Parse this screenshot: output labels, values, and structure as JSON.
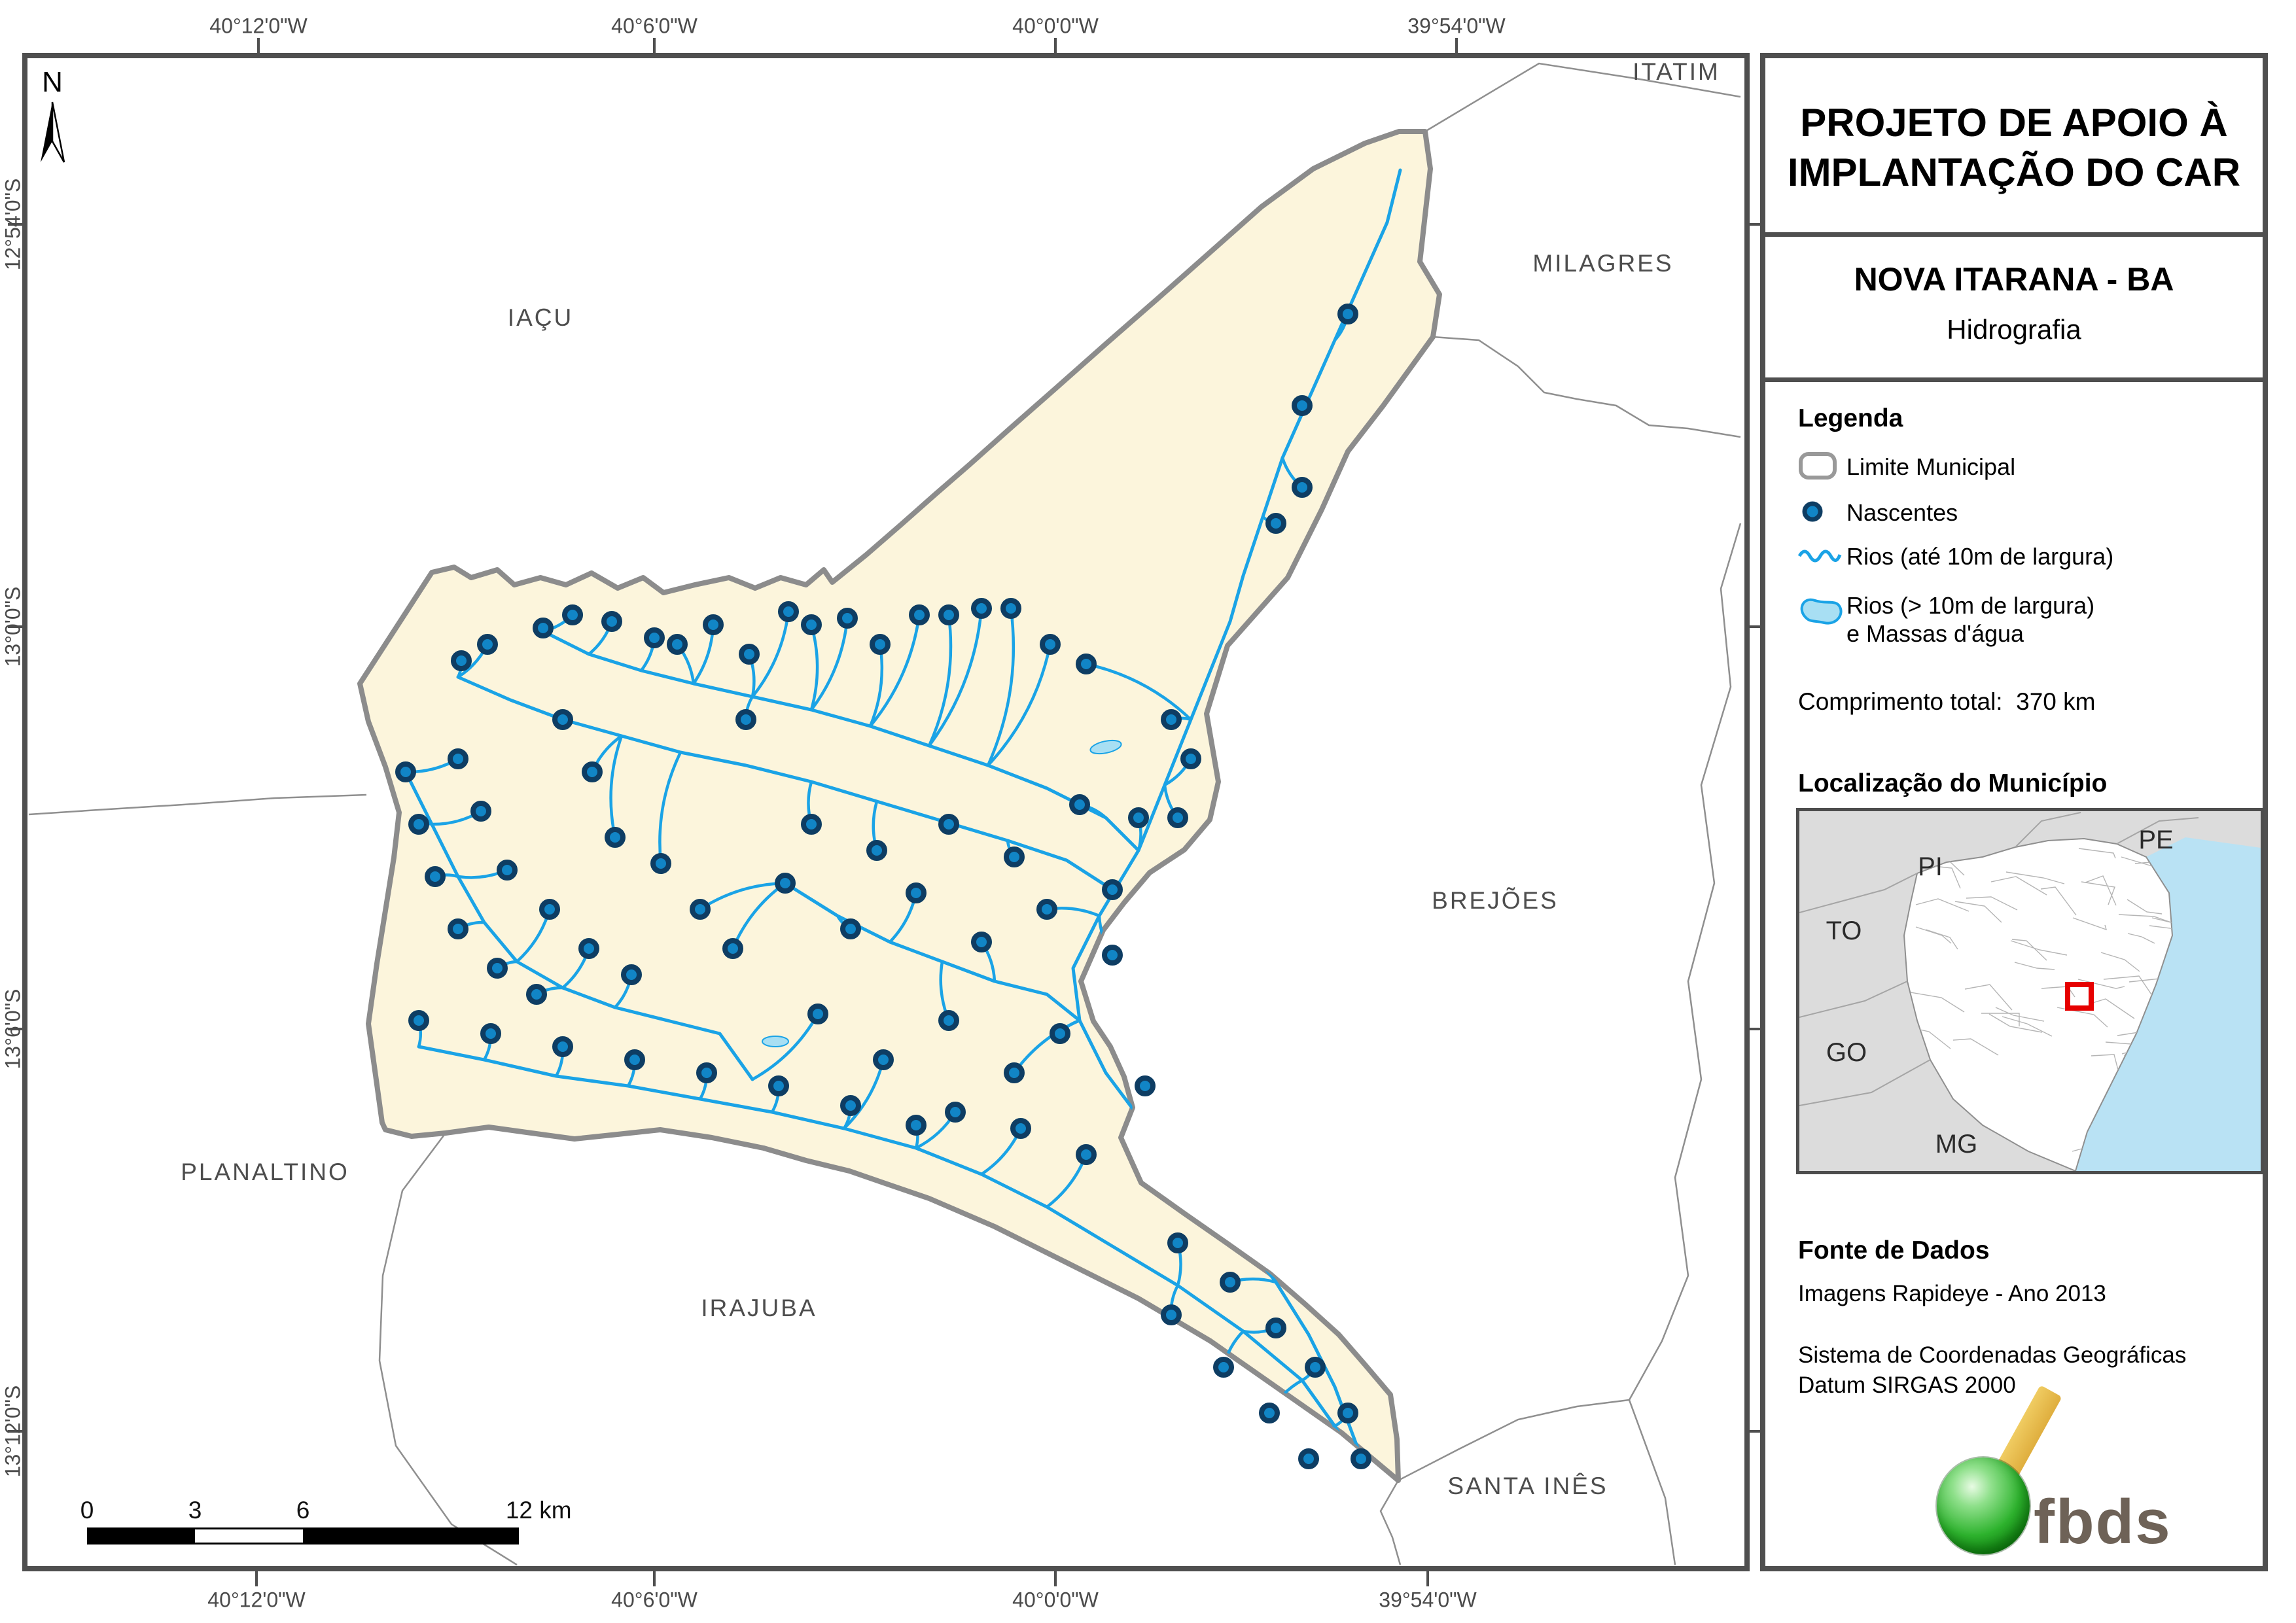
{
  "panel": {
    "title_line1": "PROJETO DE APOIO À",
    "title_line2": "IMPLANTAÇÃO DO CAR",
    "municipality_title": "NOVA ITARANA - BA",
    "theme": "Hidrografia",
    "legend": {
      "header": "Legenda",
      "item_limite": "Limite Municipal",
      "item_nascentes": "Nascentes",
      "item_rios": "Rios (até 10m de largura)",
      "item_rios_largos_l1": "Rios (> 10m de largura)",
      "item_rios_largos_l2": "e Massas d'água",
      "total_label": "Comprimento total:",
      "total_value": "370 km"
    },
    "location": {
      "header": "Localização do Município",
      "state_pi": "PI",
      "state_to": "TO",
      "state_go": "GO",
      "state_mg": "MG",
      "state_pe": "PE"
    },
    "source": {
      "header": "Fonte de Dados",
      "line1": "Imagens Rapideye - Ano 2013",
      "line2": "Sistema de Coordenadas Geográficas",
      "line3": "Datum SIRGAS 2000"
    },
    "logo_text": "fbds"
  },
  "map": {
    "north_label": "N",
    "neighbors": {
      "iacu": "IAÇU",
      "milagres": "MILAGRES",
      "itatim": "ITATIM",
      "brejoes": "BREJÕES",
      "planaltino": "PLANALTINO",
      "irajuba": "IRAJUBA",
      "santa_ines": "SANTA INÊS"
    },
    "coords_top": [
      "40°12'0\"W",
      "40°6'0\"W",
      "40°0'0\"W",
      "39°54'0\"W"
    ],
    "coords_bottom": [
      "40°12'0\"W",
      "40°6'0\"W",
      "40°0'0\"W",
      "39°54'0\"W"
    ],
    "coords_left": [
      "12°54'0\"S",
      "13°0'0\"S",
      "13°6'0\"S",
      "13°12'0\"S"
    ],
    "scalebar_labels": [
      "0",
      "3",
      "6",
      "12 km"
    ],
    "colors": {
      "municipality_fill": "#FCF5DC",
      "municipality_border": "#8C8C8C",
      "river": "#1AA3E6",
      "nascente_fill": "#1185C6",
      "nascente_stroke": "#0E3D63",
      "water_body_fill": "#A8DFF3",
      "frame": "#4F4F4F",
      "neighbor_boundary": "#8F8F8F",
      "inset_state_bg": "#DCDCDC",
      "inset_ocean": "#B9E2F4",
      "inset_marker": "#E60000"
    }
  }
}
